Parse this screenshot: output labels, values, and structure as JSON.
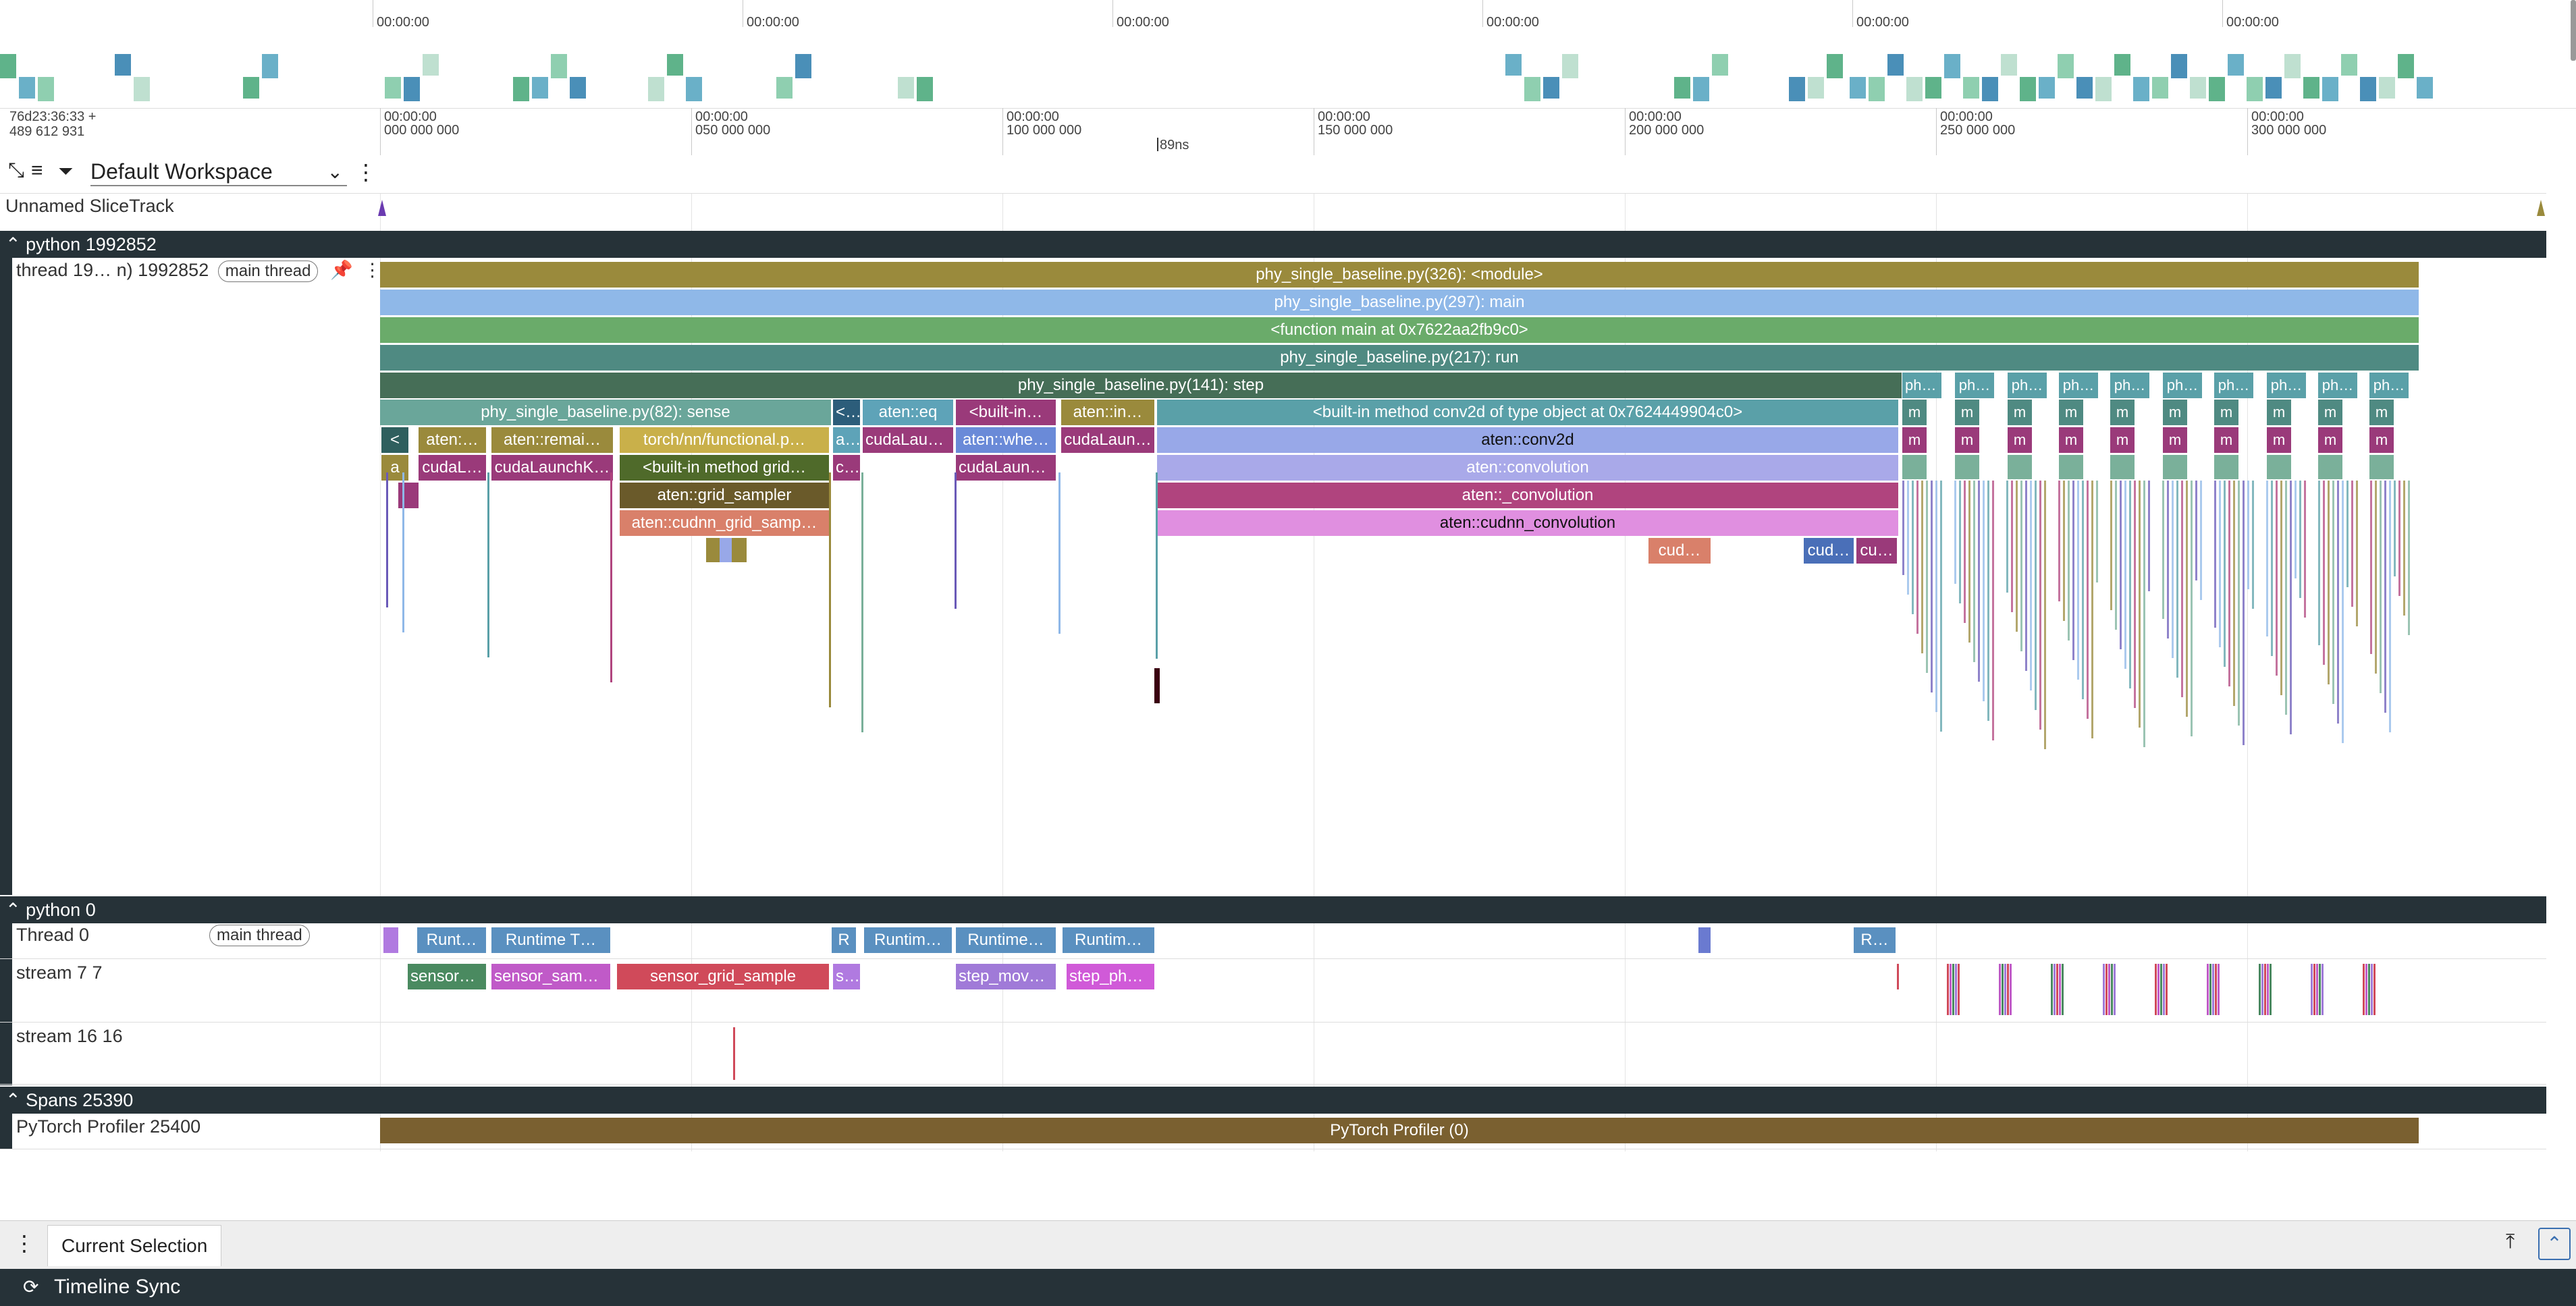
{
  "overview": {
    "labels": [
      "00:00:00",
      "00:00:00",
      "00:00:00",
      "00:00:00",
      "00:00:00",
      "00:00:00"
    ]
  },
  "timeline": {
    "origin": "76d23:36:33 +",
    "origin_sub": "489 612 931",
    "ticks": [
      {
        "top": "00:00:00",
        "bottom": "000 000 000"
      },
      {
        "top": "00:00:00",
        "bottom": "050 000 000"
      },
      {
        "top": "00:00:00",
        "bottom": "100 000 000"
      },
      {
        "top": "00:00:00",
        "bottom": "150 000 000"
      },
      {
        "top": "00:00:00",
        "bottom": "200 000 000"
      },
      {
        "top": "00:00:00",
        "bottom": "250 000 000"
      },
      {
        "top": "00:00:00",
        "bottom": "300 000 000"
      }
    ],
    "cursor_label": "89ns"
  },
  "toolbar": {
    "workspace": "Default Workspace",
    "icons": [
      "collapse-all-icon",
      "list-icon",
      "filter-icon"
    ]
  },
  "tracks": {
    "unnamed": "Unnamed SliceTrack",
    "python_main_header": "python 1992852",
    "thread_main_title": "thread 19… n) 1992852",
    "main_thread_pill": "main thread",
    "python0_header": "python 0",
    "thread0_title": "Thread 0",
    "thread0_pill": "main thread",
    "stream77": "stream 7 7",
    "stream1616": "stream 16 16",
    "spans_header": "Spans 25390",
    "profiler_track": "PyTorch Profiler 25400"
  },
  "slices": {
    "module": "phy_single_baseline.py(326): <module>",
    "main": "phy_single_baseline.py(297): main",
    "function_main": "<function main at 0x7622aa2fb9c0>",
    "run": "phy_single_baseline.py(217): run",
    "step": "phy_single_baseline.py(141): step",
    "ph_repeat": "ph…",
    "phy_short": "phy…",
    "sense": "phy_single_baseline.py(82): sense",
    "lt": "<…",
    "aten_eq": "aten::eq",
    "builtin_in": "<built-in…",
    "aten_in": "aten::in…",
    "conv_builtin": "<built-in method conv2d of type object at 0x7624449904c0>",
    "m": "m",
    "lt_single": "<",
    "aten_dots": "aten:…",
    "aten_remai": "aten::remai…",
    "torch_functional": "torch/nn/functional.p…",
    "a_dots": "a…",
    "cuda_laun": "cudaLaun…",
    "aten_whe": "aten::whe…",
    "cuda_laun2": "cudaLaun…",
    "conv2d": "aten::conv2d",
    "a": "a",
    "cudal": "cudaL…",
    "cuda_launch_k": "cudaLaunchK…",
    "builtin_grid": "<built-in method grid…",
    "c_dots": "c…",
    "cuda_launc": "cudaLaunc…",
    "convolution": "aten::convolution",
    "grid_sampler": "aten::grid_sampler",
    "_convolution": "aten::_convolution",
    "cudnn_grid": "aten::cudnn_grid_samp…",
    "cudnn_conv": "aten::cudnn_convolution",
    "cud": "cud…",
    "cud2": "cud…",
    "cu": "cu…"
  },
  "thread0_slices": {
    "runt": "Runt…",
    "runtime_t": "Runtime T…",
    "r": "R",
    "runtim": "Runtim…",
    "runtime": "Runtime…",
    "runtim2": "Runtim…",
    "r2": "R…"
  },
  "stream_slices": {
    "sensor": "sensor_…",
    "sensor_samp": "sensor_samp…",
    "sensor_grid": "sensor_grid_sample",
    "s": "s…",
    "step_movem": "step_movem…",
    "step_phe": "step_phe…"
  },
  "profiler_slice": "PyTorch Profiler (0)",
  "bottom": {
    "tab": "Current Selection",
    "status": "Timeline Sync"
  },
  "colors": {
    "module": "#9a8a3c",
    "main": "#8fb8e8",
    "func": "#6aab6a",
    "run": "#4f8a82",
    "step": "#466e57",
    "sense": "#6aa69a",
    "conv": "#5aa0a8",
    "conv2d": "#98a8e8",
    "convolution": "#a9a9e9",
    "_convolution": "#b0447e",
    "cudnn": "#e08fe0",
    "header": "#263238",
    "profiler": "#7a6030"
  }
}
